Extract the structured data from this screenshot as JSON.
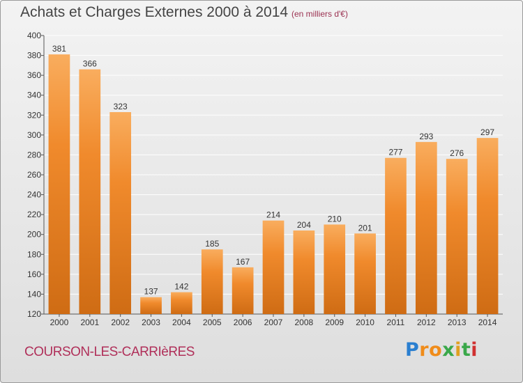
{
  "title": "Achats et Charges Externes 2000 à 2014",
  "subtitle": "(en milliers d'€)",
  "commune": "COURSON-LES-CARRIèRES",
  "brand": {
    "letters": [
      "P",
      "r",
      "o",
      "x",
      "i",
      "t",
      "i"
    ],
    "colors": [
      "#2a7fd0",
      "#f08c1a",
      "#f08c1a",
      "#3aa84a",
      "#e0a020",
      "#3aa84a",
      "#d03030"
    ]
  },
  "colors": {
    "bar": "#f08a2c",
    "bar_light": "#f9ad5e",
    "bar_dark": "#cf6c14",
    "grid": "#ffffff"
  },
  "chart_data": {
    "type": "bar",
    "categories": [
      "2000",
      "2001",
      "2002",
      "2003",
      "2004",
      "2005",
      "2006",
      "2007",
      "2008",
      "2009",
      "2010",
      "2011",
      "2012",
      "2013",
      "2014"
    ],
    "values": [
      381,
      366,
      323,
      137,
      142,
      185,
      167,
      214,
      204,
      210,
      201,
      277,
      293,
      276,
      297
    ],
    "title": "Achats et Charges Externes 2000 à 2014",
    "xlabel": "",
    "ylabel": "",
    "ylim": [
      120,
      400
    ],
    "yticks": [
      120,
      140,
      160,
      180,
      200,
      220,
      240,
      260,
      280,
      300,
      320,
      340,
      360,
      380,
      400
    ],
    "grid": true,
    "data_labels": true
  }
}
